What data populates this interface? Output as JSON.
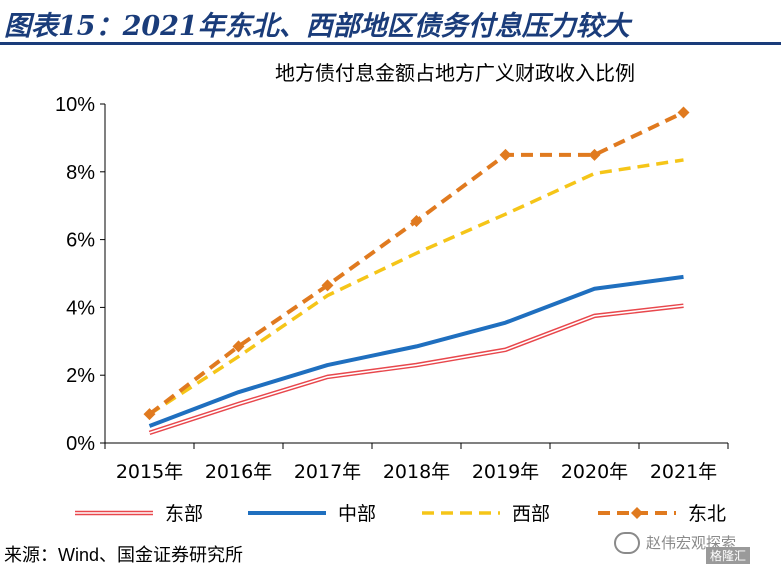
{
  "header": {
    "figure_title": "图表15：2021年东北、西部地区债务付息压力较大"
  },
  "source_note": "来源：Wind、国金证券研究所",
  "watermark": {
    "text": "赵伟宏观探索",
    "sub": "格隆汇"
  },
  "colors": {
    "title_blue": "#1a3c7a",
    "east": "#e8474c",
    "central": "#1f6fbf",
    "west": "#f5c518",
    "northeast": "#e07a1f"
  },
  "chart_data": {
    "type": "line",
    "title": "地方债付息金额占地方广义财政收入比例",
    "xlabel": "",
    "ylabel": "",
    "categories": [
      "2015年",
      "2016年",
      "2017年",
      "2018年",
      "2019年",
      "2020年",
      "2021年"
    ],
    "ylim": [
      0,
      10
    ],
    "yticks": [
      0,
      2,
      4,
      6,
      8,
      10
    ],
    "ytick_labels": [
      "0%",
      "2%",
      "4%",
      "6%",
      "8%",
      "10%"
    ],
    "y_unit": "%",
    "grid": false,
    "legend_position": "bottom",
    "series": [
      {
        "name": "东部",
        "values": [
          0.3,
          1.15,
          1.95,
          2.3,
          2.75,
          3.75,
          4.05
        ],
        "style": "double-line",
        "color": "#e8474c"
      },
      {
        "name": "中部",
        "values": [
          0.5,
          1.5,
          2.3,
          2.85,
          3.55,
          4.55,
          4.9
        ],
        "style": "solid",
        "color": "#1f6fbf"
      },
      {
        "name": "西部",
        "values": [
          0.85,
          2.55,
          4.35,
          5.6,
          6.75,
          7.95,
          8.35
        ],
        "style": "dashed",
        "color": "#f5c518"
      },
      {
        "name": "东北",
        "values": [
          0.85,
          2.85,
          4.65,
          6.55,
          8.5,
          8.5,
          9.75
        ],
        "style": "dashed-markers",
        "color": "#e07a1f"
      }
    ]
  }
}
